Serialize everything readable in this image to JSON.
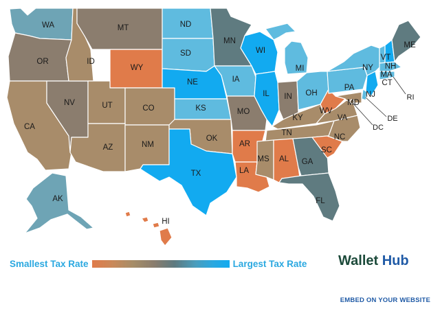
{
  "colors": {
    "lowest": "#e07b4a",
    "highest": "#12aaf0",
    "palette": {
      "orange": "#e07b4a",
      "tan": "#a88c6a",
      "taupe": "#8b7d6e",
      "slate": "#5f7b80",
      "teal": "#6ea4b5",
      "light_blue": "#5fbbdf",
      "blue": "#12aaf0"
    }
  },
  "states": {
    "WA": {
      "label": "WA",
      "tone": "teal"
    },
    "OR": {
      "label": "OR",
      "tone": "taupe"
    },
    "CA": {
      "label": "CA",
      "tone": "tan"
    },
    "NV": {
      "label": "NV",
      "tone": "taupe"
    },
    "ID": {
      "label": "ID",
      "tone": "tan"
    },
    "MT": {
      "label": "MT",
      "tone": "taupe"
    },
    "WY": {
      "label": "WY",
      "tone": "orange"
    },
    "UT": {
      "label": "UT",
      "tone": "tan"
    },
    "CO": {
      "label": "CO",
      "tone": "tan"
    },
    "AZ": {
      "label": "AZ",
      "tone": "tan"
    },
    "NM": {
      "label": "NM",
      "tone": "tan"
    },
    "ND": {
      "label": "ND",
      "tone": "light_blue"
    },
    "SD": {
      "label": "SD",
      "tone": "light_blue"
    },
    "NE": {
      "label": "NE",
      "tone": "blue"
    },
    "KS": {
      "label": "KS",
      "tone": "light_blue"
    },
    "OK": {
      "label": "OK",
      "tone": "tan"
    },
    "TX": {
      "label": "TX",
      "tone": "blue"
    },
    "MN": {
      "label": "MN",
      "tone": "slate"
    },
    "IA": {
      "label": "IA",
      "tone": "light_blue"
    },
    "MO": {
      "label": "MO",
      "tone": "taupe"
    },
    "AR": {
      "label": "AR",
      "tone": "orange"
    },
    "LA": {
      "label": "LA",
      "tone": "orange"
    },
    "WI": {
      "label": "WI",
      "tone": "blue"
    },
    "IL": {
      "label": "IL",
      "tone": "blue"
    },
    "MI": {
      "label": "MI",
      "tone": "light_blue"
    },
    "IN": {
      "label": "IN",
      "tone": "taupe"
    },
    "OH": {
      "label": "OH",
      "tone": "light_blue"
    },
    "KY": {
      "label": "KY",
      "tone": "tan"
    },
    "TN": {
      "label": "TN",
      "tone": "tan"
    },
    "MS": {
      "label": "MS",
      "tone": "tan"
    },
    "AL": {
      "label": "AL",
      "tone": "orange"
    },
    "GA": {
      "label": "GA",
      "tone": "slate"
    },
    "FL": {
      "label": "FL",
      "tone": "slate"
    },
    "SC": {
      "label": "SC",
      "tone": "orange"
    },
    "NC": {
      "label": "NC",
      "tone": "tan"
    },
    "VA": {
      "label": "VA",
      "tone": "tan"
    },
    "WV": {
      "label": "WV",
      "tone": "orange"
    },
    "PA": {
      "label": "PA",
      "tone": "light_blue"
    },
    "NY": {
      "label": "NY",
      "tone": "light_blue"
    },
    "ME": {
      "label": "ME",
      "tone": "slate"
    },
    "VT": {
      "label": "VT",
      "tone": "light_blue"
    },
    "NH": {
      "label": "NH",
      "tone": "blue"
    },
    "MA": {
      "label": "MA",
      "tone": "light_blue"
    },
    "CT": {
      "label": "CT",
      "tone": "light_blue"
    },
    "RI": {
      "label": "RI",
      "tone": "light_blue"
    },
    "NJ": {
      "label": "NJ",
      "tone": "blue"
    },
    "DE": {
      "label": "DE",
      "tone": "light_blue"
    },
    "MD": {
      "label": "MD",
      "tone": "tan"
    },
    "DC": {
      "label": "DC",
      "tone": "tan"
    },
    "AK": {
      "label": "AK",
      "tone": "teal"
    },
    "HI": {
      "label": "HI",
      "tone": "orange"
    }
  },
  "legend": {
    "low_label": "Smallest Tax Rate",
    "high_label": "Largest Tax Rate"
  },
  "brand": {
    "part1": "Wallet",
    "part2": "Hub"
  },
  "embed_label": "EMBED ON YOUR WEBSITE"
}
